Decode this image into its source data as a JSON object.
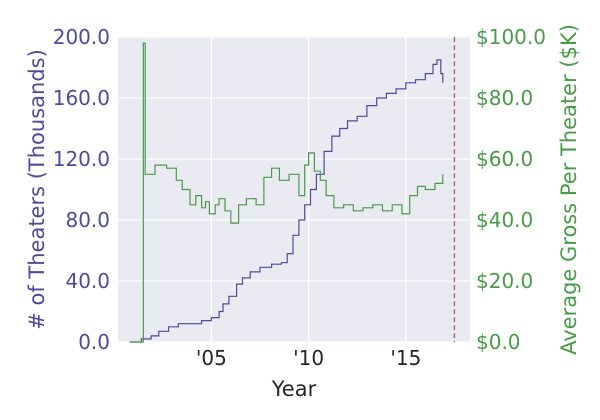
{
  "chart_data": {
    "type": "line",
    "xlabel": "Year",
    "ylabel_left": "# of Theaters (Thousands)",
    "ylabel_right": "Average Gross Per Theater ($K)",
    "xlim": [
      2000.2,
      2018.3
    ],
    "ylim_left": [
      0,
      200
    ],
    "ylim_right": [
      0,
      100
    ],
    "x_ticks": [
      {
        "value": 2005,
        "label": "'05"
      },
      {
        "value": 2010,
        "label": "'10"
      },
      {
        "value": 2015,
        "label": "'15"
      }
    ],
    "y_left_ticks": [
      {
        "value": 0,
        "label": "0.0"
      },
      {
        "value": 40,
        "label": "40.0"
      },
      {
        "value": 80,
        "label": "80.0"
      },
      {
        "value": 120,
        "label": "120.0"
      },
      {
        "value": 160,
        "label": "160.0"
      },
      {
        "value": 200,
        "label": "200.0"
      }
    ],
    "y_right_ticks": [
      {
        "value": 0,
        "label": "$0.0"
      },
      {
        "value": 20,
        "label": "$20.0"
      },
      {
        "value": 40,
        "label": "$40.0"
      },
      {
        "value": 60,
        "label": "$60.0"
      },
      {
        "value": 80,
        "label": "$80.0"
      },
      {
        "value": 100,
        "label": "$100.0"
      }
    ],
    "grid": true,
    "colors": {
      "theaters": "#4c4c9a",
      "gross": "#4a9a4a",
      "reference_line": "#b06a6a",
      "plot_background": "#eaeaf2",
      "grid": "#ffffff"
    },
    "reference_line_x": 2017.5,
    "series": [
      {
        "axis": "left",
        "x": [
          2000.8,
          2001.4,
          2001.9,
          2002.3,
          2002.8,
          2003.3,
          2003.9,
          2004.5,
          2005.0,
          2005.4,
          2005.6,
          2005.9,
          2006.3,
          2006.6,
          2007.0,
          2007.5,
          2008.1,
          2008.6,
          2008.9,
          2009.2,
          2009.5,
          2009.8,
          2010.1,
          2010.4,
          2010.8,
          2011.2,
          2011.6,
          2012.0,
          2012.5,
          2013.0,
          2013.5,
          2014.0,
          2014.5,
          2015.0,
          2015.5,
          2016.0,
          2016.4,
          2016.6,
          2016.8,
          2016.9
        ],
        "values": [
          0,
          2,
          4,
          7,
          10,
          12,
          12,
          14,
          16,
          20,
          25,
          30,
          38,
          42,
          46,
          49,
          51,
          52,
          58,
          70,
          80,
          90,
          100,
          110,
          125,
          135,
          140,
          145,
          148,
          155,
          160,
          163,
          166,
          170,
          172,
          176,
          182,
          185,
          176,
          170
        ]
      },
      {
        "axis": "right",
        "x": [
          2000.8,
          2001.5,
          2001.6,
          2002.1,
          2002.7,
          2003.2,
          2003.5,
          2003.9,
          2004.2,
          2004.5,
          2004.7,
          2004.9,
          2005.2,
          2005.4,
          2005.7,
          2006.0,
          2006.4,
          2006.8,
          2007.3,
          2007.7,
          2008.1,
          2008.5,
          2009.0,
          2009.5,
          2009.8,
          2010.0,
          2010.3,
          2010.6,
          2010.9,
          2011.3,
          2011.8,
          2012.3,
          2012.8,
          2013.3,
          2013.8,
          2014.3,
          2014.8,
          2015.2,
          2015.6,
          2016.0,
          2016.5,
          2016.9
        ],
        "values": [
          0,
          98,
          55,
          58,
          57,
          53,
          50,
          45,
          48,
          44,
          46,
          42,
          45,
          47,
          43,
          39,
          45,
          47,
          45,
          54,
          57,
          53,
          55,
          48,
          58,
          62,
          56,
          53,
          48,
          44,
          45,
          43,
          44,
          45,
          43,
          45,
          42,
          48,
          51,
          50,
          52,
          55
        ]
      }
    ]
  }
}
